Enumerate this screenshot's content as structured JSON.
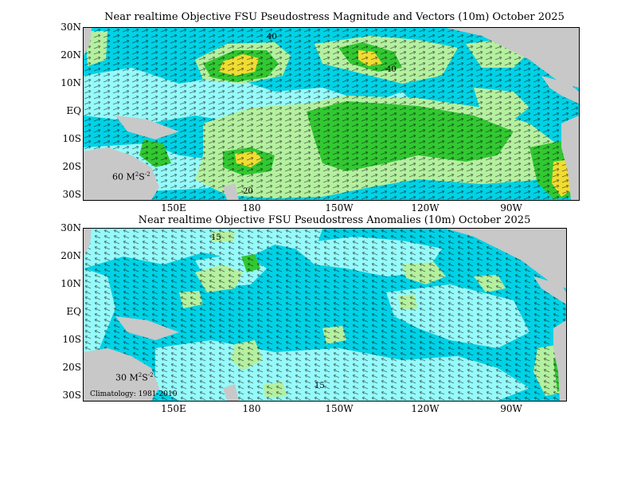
{
  "maps": [
    {
      "title": "Near realtime Objective FSU Pseudostress Magnitude and Vectors (10m) October 2025",
      "lat_labels": [
        "30N",
        "20N",
        "10N",
        "EQ",
        "10S",
        "20S",
        "30S"
      ],
      "lon_labels": [
        "150E",
        "180",
        "150W",
        "120W",
        "90W"
      ],
      "scale_value": "60",
      "scale_units": "M",
      "scale_exp1": "2",
      "scale_mid": "S",
      "scale_exp2": "-2",
      "contour_labels": [
        "40",
        "20",
        "40"
      ]
    },
    {
      "title": "Near realtime Objective FSU Pseudostress Anomalies (10m) October 2025",
      "lat_labels": [
        "30N",
        "20N",
        "10N",
        "EQ",
        "10S",
        "20S",
        "30S"
      ],
      "lon_labels": [
        "150E",
        "180",
        "150W",
        "120W",
        "90W"
      ],
      "scale_value": "30",
      "scale_units": "M",
      "scale_exp1": "2",
      "scale_mid": "S",
      "scale_exp2": "-2",
      "climatology": "Climatology: 1981-2010",
      "contour_labels": [
        "15",
        "15"
      ]
    }
  ],
  "colors": {
    "ocean_mid": "#00d2e6",
    "ocean_low": "#96fafa",
    "level_light_green": "#b4f0a0",
    "level_green": "#32c832",
    "level_yellow": "#f0dc32",
    "land": "#c8c8c8"
  }
}
